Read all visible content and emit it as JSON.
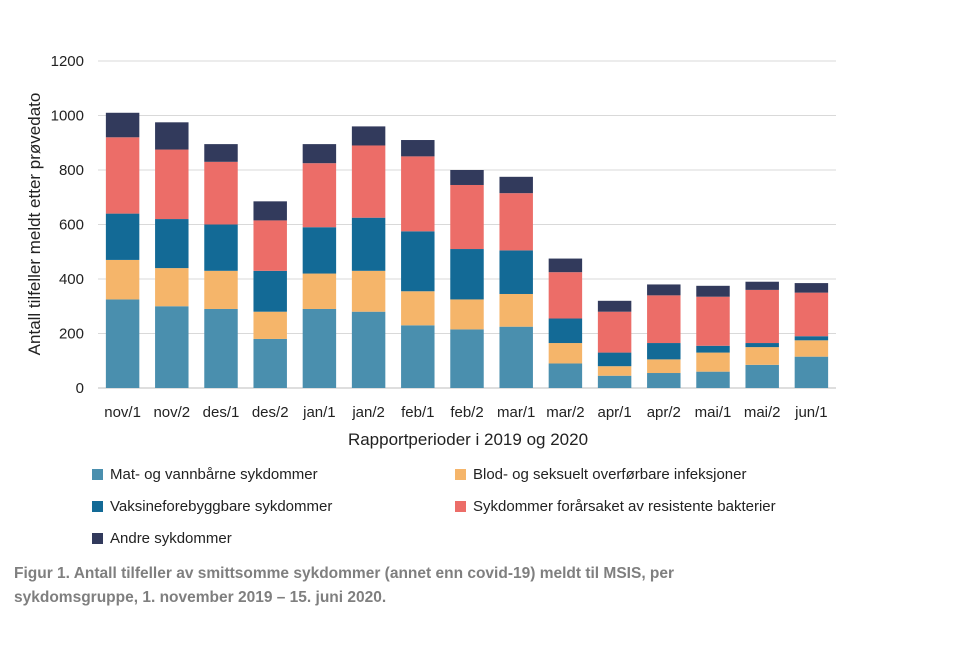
{
  "chart_data": {
    "type": "bar",
    "stacked": true,
    "categories": [
      "nov/1",
      "nov/2",
      "des/1",
      "des/2",
      "jan/1",
      "jan/2",
      "feb/1",
      "feb/2",
      "mar/1",
      "mar/2",
      "apr/1",
      "apr/2",
      "mai/1",
      "mai/2",
      "jun/1"
    ],
    "series": [
      {
        "name": "Mat- og vannbårne sykdommer",
        "color": "#4a8fae",
        "values": [
          325,
          300,
          290,
          180,
          290,
          280,
          230,
          215,
          225,
          90,
          45,
          55,
          60,
          85,
          115
        ]
      },
      {
        "name": "Blod- og seksuelt overførbare infeksjoner",
        "color": "#f5b56a",
        "values": [
          145,
          140,
          140,
          100,
          130,
          150,
          125,
          110,
          120,
          75,
          35,
          50,
          70,
          65,
          60
        ]
      },
      {
        "name": "Vaksineforebyggbare sykdommer",
        "color": "#136a96",
        "values": [
          170,
          180,
          170,
          150,
          170,
          195,
          220,
          185,
          160,
          90,
          50,
          60,
          25,
          15,
          15
        ]
      },
      {
        "name": "Sykdommer forårsaket av resistente bakterier",
        "color": "#ec6d68",
        "values": [
          280,
          255,
          230,
          185,
          235,
          265,
          275,
          235,
          210,
          170,
          150,
          175,
          180,
          195,
          160
        ]
      },
      {
        "name": "Andre sykdommer",
        "color": "#323a5c",
        "values": [
          90,
          100,
          65,
          70,
          70,
          70,
          60,
          55,
          60,
          50,
          40,
          40,
          40,
          30,
          35
        ]
      }
    ],
    "title": "",
    "xlabel": "Rapportperioder i 2019 og 2020",
    "ylabel": "Antall tilfeller meldt etter prøvedato",
    "ylim": [
      0,
      1200
    ],
    "yticks": [
      0,
      200,
      400,
      600,
      800,
      1000,
      1200
    ],
    "grid": true,
    "legend": "bottom"
  },
  "legend_items": [
    {
      "label": "Mat- og vannbårne sykdommer",
      "color": "#4a8fae"
    },
    {
      "label": "Blod- og seksuelt overførbare infeksjoner",
      "color": "#f5b56a"
    },
    {
      "label": "Vaksineforebyggbare sykdommer",
      "color": "#136a96"
    },
    {
      "label": "Sykdommer forårsaket av resistente bakterier",
      "color": "#ec6d68"
    },
    {
      "label": "Andre sykdommer",
      "color": "#323a5c"
    }
  ],
  "caption": {
    "line1": "Figur 1. Antall tilfeller av smittsomme sykdommer (annet enn covid-19) meldt til MSIS, per",
    "line2": "sykdomsgruppe, 1. november 2019 – 15. juni 2020."
  }
}
